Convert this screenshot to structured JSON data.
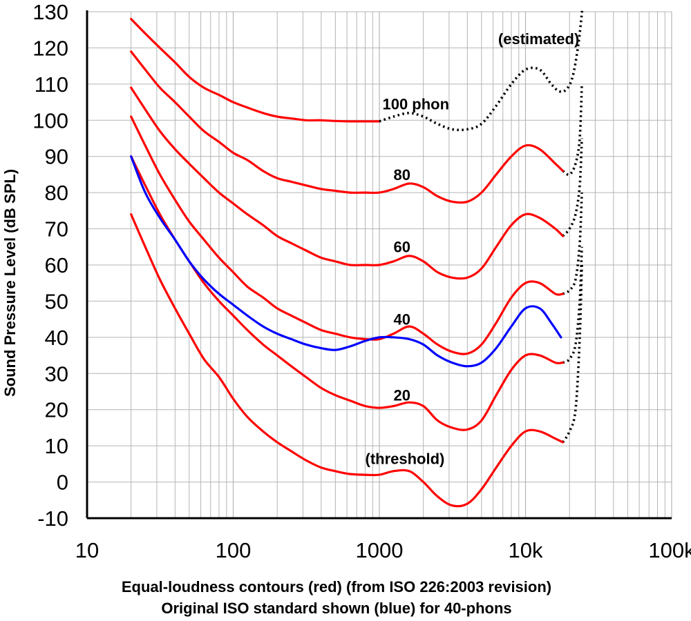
{
  "chart_data": {
    "type": "line",
    "x_scale": "log",
    "xlim": [
      10,
      100000
    ],
    "ylim": [
      -10,
      130
    ],
    "x_ticks": [
      10,
      100,
      1000,
      10000,
      100000
    ],
    "x_tick_labels": [
      "10",
      "100",
      "1000",
      "10k",
      "100k"
    ],
    "y_ticks": [
      -10,
      0,
      10,
      20,
      30,
      40,
      50,
      60,
      70,
      80,
      90,
      100,
      110,
      120,
      130
    ],
    "y_tick_labels": [
      "-10",
      "0",
      "10",
      "20",
      "30",
      "40",
      "50",
      "60",
      "70",
      "80",
      "90",
      "100",
      "110",
      "120",
      "130"
    ],
    "grid": true,
    "ylabel": "Sound Pressure Level (dB SPL)",
    "caption_line1": "Equal-loudness contours (red) (from ISO 226:2003 revision)",
    "caption_line2": "Original ISO standard shown (blue) for 40-phons",
    "colors": {
      "red": "#ff0000",
      "blue": "#0000ff",
      "estimated": "#000000",
      "grid": "#b4b4b4",
      "axis": "#000000"
    },
    "series": [
      {
        "label": "(threshold)",
        "color": "#ff0000",
        "style": "solid",
        "x": [
          20,
          25,
          31.5,
          40,
          50,
          63,
          80,
          100,
          125,
          160,
          200,
          250,
          315,
          400,
          500,
          630,
          800,
          1000,
          1250,
          1600,
          2000,
          2500,
          3150,
          4000,
          5000,
          6300,
          8000,
          10000,
          12500,
          16000,
          18000
        ],
        "y": [
          74,
          65,
          56,
          48,
          41,
          34,
          29,
          23,
          18,
          14,
          11,
          8.5,
          6,
          4,
          3,
          2.2,
          2,
          2,
          3,
          3,
          0,
          -4,
          -6.5,
          -6,
          -2,
          4,
          10,
          14,
          14,
          12,
          11
        ]
      },
      {
        "label": "20",
        "color": "#ff0000",
        "style": "solid",
        "x": [
          20,
          25,
          31.5,
          40,
          50,
          63,
          80,
          100,
          125,
          160,
          200,
          250,
          315,
          400,
          500,
          630,
          800,
          1000,
          1250,
          1600,
          2000,
          2500,
          3150,
          4000,
          5000,
          6300,
          8000,
          10000,
          12500,
          16000,
          18000
        ],
        "y": [
          90,
          82,
          74,
          67,
          61,
          55,
          50,
          46,
          42,
          38,
          35,
          32,
          29,
          26,
          24,
          22.5,
          21,
          20.5,
          21,
          22,
          21,
          17,
          15,
          14.5,
          17,
          24,
          31,
          35,
          35,
          33,
          33
        ]
      },
      {
        "label": "40",
        "color": "#ff0000",
        "style": "solid",
        "x": [
          20,
          25,
          31.5,
          40,
          50,
          63,
          80,
          100,
          125,
          160,
          200,
          250,
          315,
          400,
          500,
          630,
          800,
          1000,
          1250,
          1600,
          2000,
          2500,
          3150,
          4000,
          5000,
          6300,
          8000,
          10000,
          12500,
          16000,
          18000
        ],
        "y": [
          101,
          93,
          85,
          78,
          72,
          67,
          62,
          58,
          54,
          51,
          48,
          46,
          44,
          42,
          41,
          40,
          39.5,
          39.5,
          41,
          43,
          41,
          38,
          36,
          35.5,
          38,
          44,
          51,
          55,
          55,
          52,
          52
        ]
      },
      {
        "label": "60",
        "color": "#ff0000",
        "style": "solid",
        "x": [
          20,
          25,
          31.5,
          40,
          50,
          63,
          80,
          100,
          125,
          160,
          200,
          250,
          315,
          400,
          500,
          630,
          800,
          1000,
          1250,
          1600,
          2000,
          2500,
          3150,
          4000,
          5000,
          6300,
          8000,
          10000,
          12500,
          16000,
          18000
        ],
        "y": [
          109,
          103,
          97,
          92,
          88,
          84,
          80,
          77,
          74,
          71,
          68,
          66,
          64,
          62,
          61,
          60,
          60,
          60,
          61,
          62.5,
          61,
          58,
          56.5,
          56.5,
          59,
          65,
          71,
          74,
          73,
          70,
          68
        ]
      },
      {
        "label": "80",
        "color": "#ff0000",
        "style": "solid",
        "x": [
          20,
          25,
          31.5,
          40,
          50,
          63,
          80,
          100,
          125,
          160,
          200,
          250,
          315,
          400,
          500,
          630,
          800,
          1000,
          1250,
          1600,
          2000,
          2500,
          3150,
          4000,
          5000,
          6300,
          8000,
          10000,
          12500,
          16000,
          18000
        ],
        "y": [
          119,
          114,
          109,
          105,
          101,
          97,
          94,
          91,
          89,
          86,
          84,
          83,
          82,
          81,
          80.5,
          80,
          80,
          80,
          81,
          82.5,
          81.5,
          79,
          77.5,
          77.5,
          80,
          85,
          90,
          93,
          92,
          88,
          86
        ]
      },
      {
        "label": "100 phon",
        "color": "#ff0000",
        "style": "solid",
        "x": [
          20,
          25,
          31.5,
          40,
          50,
          63,
          80,
          100,
          125,
          160,
          200,
          250,
          315,
          400,
          500,
          630,
          800,
          1000
        ],
        "y": [
          128,
          124,
          120,
          116,
          112,
          109,
          107,
          105,
          103.5,
          102,
          101,
          100.5,
          100,
          100,
          99.8,
          99.7,
          99.7,
          99.7
        ]
      },
      {
        "label": "100 phon (estimated)",
        "color": "#000000",
        "style": "dotted",
        "x": [
          1000,
          1250,
          1600,
          2000,
          2500,
          3150,
          4000,
          5000,
          6300,
          8000,
          10000,
          12500,
          15000,
          17000,
          19000,
          21000,
          23000,
          24500
        ],
        "y": [
          99.7,
          101,
          102,
          101,
          99,
          97.5,
          97.5,
          99,
          104,
          110,
          114,
          114,
          110,
          108,
          108.5,
          112,
          121,
          131
        ]
      },
      {
        "label": "40-phons (original ISO)",
        "color": "#0000ff",
        "style": "solid",
        "x": [
          20,
          25,
          31.5,
          40,
          50,
          63,
          80,
          100,
          125,
          160,
          200,
          250,
          315,
          400,
          500,
          630,
          800,
          1000,
          1250,
          1600,
          2000,
          2500,
          3150,
          4000,
          5000,
          6300,
          8000,
          10000,
          12500,
          15000,
          17500
        ],
        "y": [
          90,
          80,
          73,
          67,
          61,
          56,
          52,
          49,
          46,
          43,
          41,
          39.5,
          38,
          37,
          36.5,
          37.5,
          39,
          40,
          40,
          39.5,
          38,
          35,
          33,
          32,
          33,
          37,
          43,
          48,
          48,
          44,
          40
        ]
      }
    ],
    "extensions": [
      {
        "color": "#000000",
        "style": "dotted",
        "x": [
          18000,
          20000,
          22000,
          23500,
          24300
        ],
        "y": [
          11,
          14,
          20,
          40,
          60
        ]
      },
      {
        "color": "#000000",
        "style": "dotted",
        "x": [
          18000,
          20000,
          22000,
          23500,
          24300
        ],
        "y": [
          33,
          34,
          38,
          50,
          65
        ]
      },
      {
        "color": "#000000",
        "style": "dotted",
        "x": [
          18000,
          20000,
          22000,
          23500,
          24300
        ],
        "y": [
          52,
          53,
          56,
          66,
          80
        ]
      },
      {
        "color": "#000000",
        "style": "dotted",
        "x": [
          18000,
          20000,
          22000,
          23500,
          24300
        ],
        "y": [
          68,
          70,
          74,
          82,
          95
        ]
      },
      {
        "color": "#000000",
        "style": "dotted",
        "x": [
          18000,
          20000,
          22000,
          23500,
          24300
        ],
        "y": [
          86,
          85,
          88,
          95,
          110
        ]
      }
    ],
    "annotations": [
      {
        "text": "(estimated)",
        "x": 6500,
        "y": 121
      },
      {
        "text": "100 phon",
        "x": 1050,
        "y": 103
      },
      {
        "text": "80",
        "x": 1250,
        "y": 83.5
      },
      {
        "text": "60",
        "x": 1250,
        "y": 63.5
      },
      {
        "text": "40",
        "x": 1250,
        "y": 43.5
      },
      {
        "text": "20",
        "x": 1250,
        "y": 22.5
      },
      {
        "text": "(threshold)",
        "x": 800,
        "y": 5
      }
    ]
  }
}
